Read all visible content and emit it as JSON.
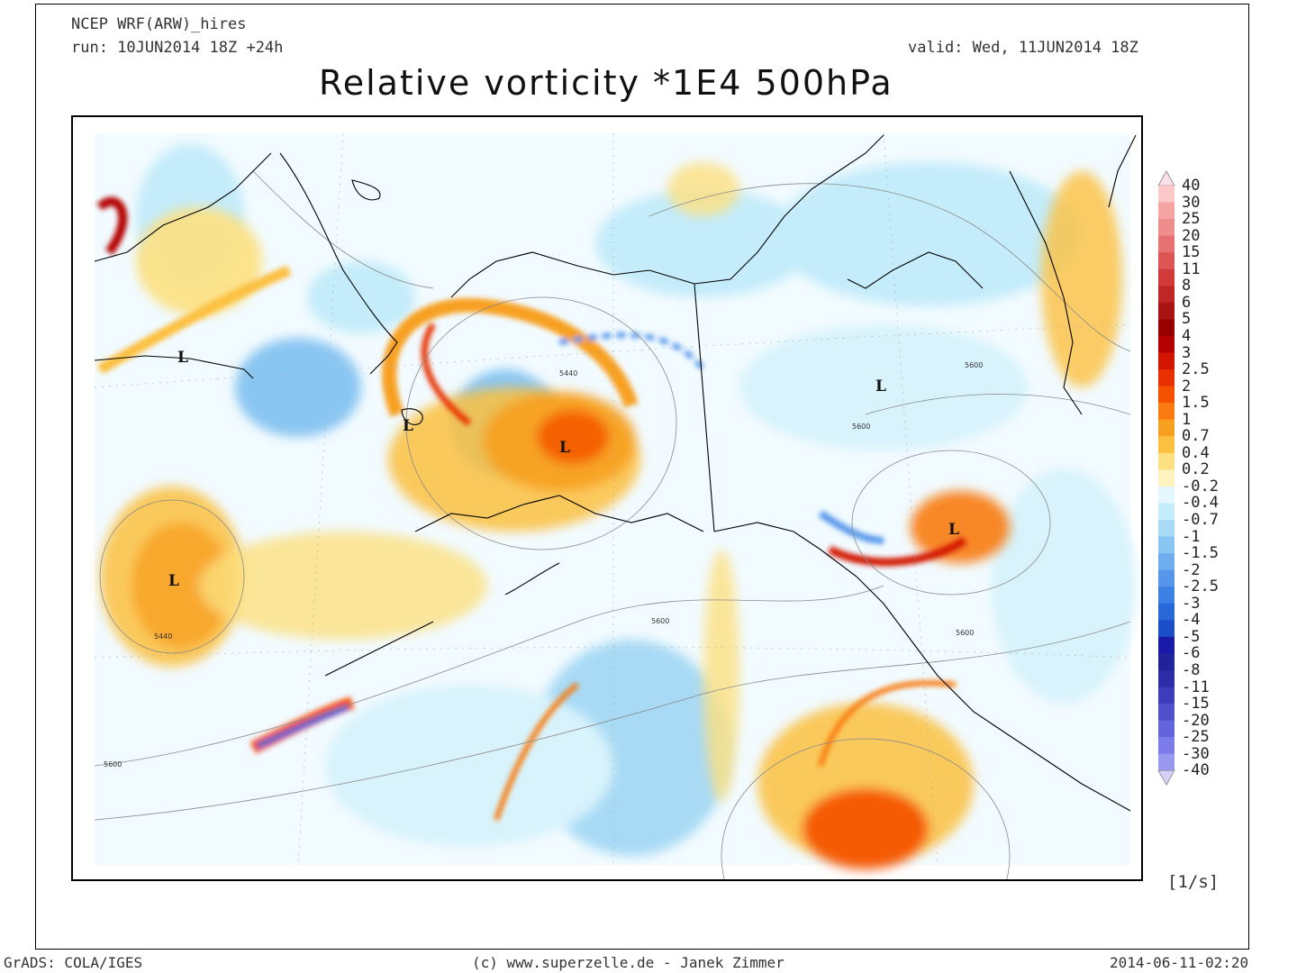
{
  "header": {
    "model": "NCEP WRF(ARW)_hires",
    "run": "run: 10JUN2014 18Z +24h",
    "valid": "valid: Wed, 11JUN2014 18Z",
    "title": "Relative vorticity *1E4 500hPa"
  },
  "legend": {
    "units": "[1/s]",
    "levels": [
      {
        "label": "40",
        "color": "#fcc8c8"
      },
      {
        "label": "30",
        "color": "#f5a3a3"
      },
      {
        "label": "25",
        "color": "#ef8c8c"
      },
      {
        "label": "20",
        "color": "#e77070"
      },
      {
        "label": "15",
        "color": "#de5555"
      },
      {
        "label": "11",
        "color": "#d23a3a"
      },
      {
        "label": "8",
        "color": "#c02626"
      },
      {
        "label": "6",
        "color": "#a81414"
      },
      {
        "label": "5",
        "color": "#980000"
      },
      {
        "label": "4",
        "color": "#b40000"
      },
      {
        "label": "3",
        "color": "#d21400"
      },
      {
        "label": "2.5",
        "color": "#e83000"
      },
      {
        "label": "2",
        "color": "#f55000"
      },
      {
        "label": "1.5",
        "color": "#f87a10"
      },
      {
        "label": "1",
        "color": "#f7a020"
      },
      {
        "label": "0.7",
        "color": "#fcc040"
      },
      {
        "label": "0.4",
        "color": "#fde080"
      },
      {
        "label": "0.2",
        "color": "#fff4c0"
      },
      {
        "label": "-0.2",
        "color": "#e6f8ff"
      },
      {
        "label": "-0.4",
        "color": "#c4ecfa"
      },
      {
        "label": "-0.7",
        "color": "#a8daf5"
      },
      {
        "label": "-1",
        "color": "#8ac6f2"
      },
      {
        "label": "-1.5",
        "color": "#6eaeef"
      },
      {
        "label": "-2",
        "color": "#5596ea"
      },
      {
        "label": "-2.5",
        "color": "#3c80e6"
      },
      {
        "label": "-3",
        "color": "#2868d8"
      },
      {
        "label": "-4",
        "color": "#1a4ec8"
      },
      {
        "label": "-5",
        "color": "#1a1aa8"
      },
      {
        "label": "-6",
        "color": "#22229a"
      },
      {
        "label": "-8",
        "color": "#2c2ca8"
      },
      {
        "label": "-11",
        "color": "#3c3cbc"
      },
      {
        "label": "-15",
        "color": "#5050cc"
      },
      {
        "label": "-20",
        "color": "#6464dc"
      },
      {
        "label": "-25",
        "color": "#7c7ce8"
      },
      {
        "label": "-30",
        "color": "#9898f0"
      },
      {
        "label": "-40",
        "color": "#b8b8f8"
      }
    ],
    "top_arrow_color": "#fde0e8",
    "bottom_arrow_color": "#d4d0fa"
  },
  "map": {
    "low_markers": [
      "L",
      "L",
      "L",
      "L",
      "L",
      "L"
    ],
    "contour_labels": [
      "5440",
      "5600",
      "5600",
      "5600",
      "5440",
      "5600",
      "5600"
    ]
  },
  "footer": {
    "left": "GrADS: COLA/IGES",
    "center": "(c) www.superzelle.de - Janek Zimmer",
    "right": "2014-06-11-02:20"
  }
}
